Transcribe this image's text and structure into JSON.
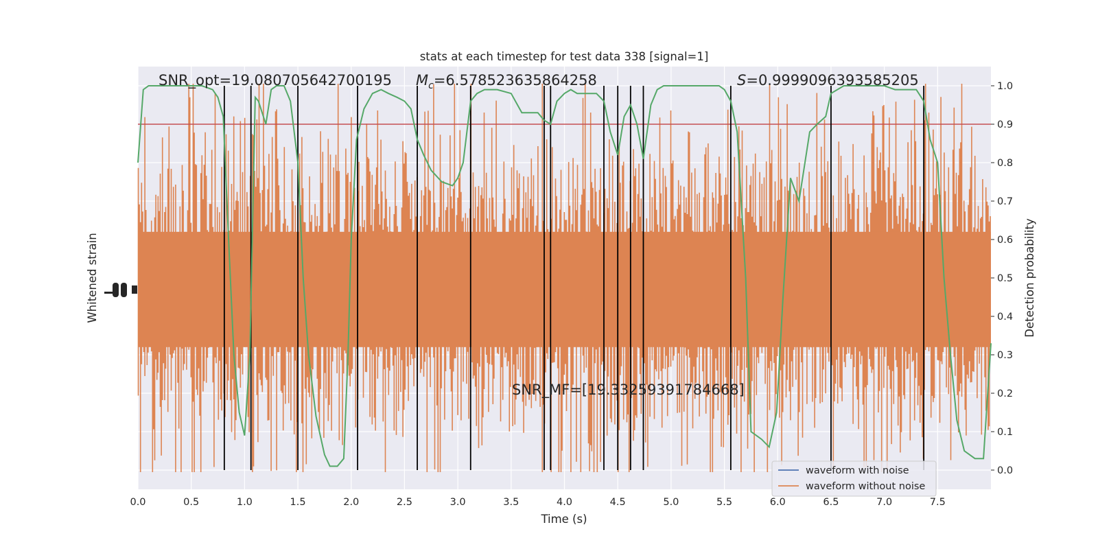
{
  "chart_data": {
    "type": "line",
    "title": "stats at each timestep for test data 338 [signal=1]",
    "xlabel": "Time (s)",
    "ylabel_left": "Whitened strain",
    "ylabel_right": "Detection probability",
    "xlim": [
      0,
      8
    ],
    "ylim_right": [
      -0.05,
      1.05
    ],
    "x_ticks": [
      "0.0",
      "0.5",
      "1.0",
      "1.5",
      "2.0",
      "2.5",
      "3.0",
      "3.5",
      "4.0",
      "4.5",
      "5.0",
      "5.5",
      "6.0",
      "6.5",
      "7.0",
      "7.5"
    ],
    "y_ticks_right": [
      "0.0",
      "0.1",
      "0.2",
      "0.3",
      "0.4",
      "0.5",
      "0.6",
      "0.7",
      "0.8",
      "0.9",
      "1.0"
    ],
    "grid": true,
    "threshold": 0.9,
    "annotations": {
      "snr_opt": "SNR_opt=19.080705642700195",
      "mc_symbol": "M",
      "mc_sub": "c",
      "mc_value": "=6.578523635864258",
      "s_symbol": "S",
      "s_value": "=0.9999096393585205",
      "snr_mf": "SNR_MF=[19.33259391784668]"
    },
    "vertical_lines": [
      0.81,
      1.06,
      1.5,
      2.06,
      2.62,
      3.12,
      3.81,
      3.87,
      4.37,
      4.5,
      4.62,
      4.74,
      5.56,
      6.5,
      7.37
    ],
    "series": [
      {
        "name": "waveform with noise",
        "color": "#4c72b0"
      },
      {
        "name": "waveform without noise",
        "color": "#dd8452"
      },
      {
        "color": "#55a868",
        "x": [
          0.0,
          0.05,
          0.1,
          0.2,
          0.3,
          0.4,
          0.5,
          0.6,
          0.7,
          0.75,
          0.8,
          0.85,
          0.9,
          0.95,
          1.0,
          1.05,
          1.1,
          1.13,
          1.2,
          1.25,
          1.3,
          1.37,
          1.43,
          1.5,
          1.55,
          1.6,
          1.67,
          1.75,
          1.8,
          1.87,
          1.93,
          1.97,
          2.0,
          2.05,
          2.12,
          2.2,
          2.28,
          2.35,
          2.43,
          2.5,
          2.56,
          2.62,
          2.68,
          2.75,
          2.85,
          2.95,
          3.0,
          3.05,
          3.12,
          3.18,
          3.25,
          3.37,
          3.5,
          3.6,
          3.75,
          3.81,
          3.87,
          3.93,
          4.0,
          4.06,
          4.12,
          4.18,
          4.3,
          4.37,
          4.43,
          4.5,
          4.56,
          4.62,
          4.68,
          4.74,
          4.81,
          4.87,
          4.93,
          5.0,
          5.25,
          5.37,
          5.45,
          5.5,
          5.56,
          5.62,
          5.7,
          5.75,
          5.85,
          5.92,
          5.99,
          6.05,
          6.12,
          6.2,
          6.3,
          6.37,
          6.45,
          6.5,
          6.62,
          6.68,
          6.75,
          6.87,
          7.0,
          7.1,
          7.2,
          7.3,
          7.37,
          7.43,
          7.5,
          7.56,
          7.62,
          7.68,
          7.75,
          7.85,
          7.93,
          8.0
        ],
        "y": [
          0.8,
          0.99,
          1.0,
          1.0,
          1.0,
          1.0,
          1.0,
          1.0,
          0.99,
          0.97,
          0.92,
          0.6,
          0.3,
          0.15,
          0.09,
          0.3,
          0.97,
          0.96,
          0.9,
          0.99,
          1.0,
          1.0,
          0.96,
          0.8,
          0.5,
          0.3,
          0.14,
          0.04,
          0.01,
          0.01,
          0.03,
          0.3,
          0.6,
          0.86,
          0.94,
          0.98,
          0.99,
          0.98,
          0.97,
          0.96,
          0.94,
          0.86,
          0.82,
          0.78,
          0.75,
          0.74,
          0.76,
          0.8,
          0.96,
          0.98,
          0.99,
          0.99,
          0.98,
          0.93,
          0.93,
          0.91,
          0.9,
          0.96,
          0.98,
          0.99,
          0.98,
          0.98,
          0.98,
          0.96,
          0.88,
          0.82,
          0.92,
          0.95,
          0.9,
          0.81,
          0.95,
          0.99,
          1.0,
          1.0,
          1.0,
          1.0,
          1.0,
          0.99,
          0.96,
          0.88,
          0.5,
          0.1,
          0.08,
          0.06,
          0.15,
          0.45,
          0.76,
          0.7,
          0.88,
          0.9,
          0.92,
          0.98,
          1.0,
          1.0,
          1.0,
          1.0,
          1.0,
          0.99,
          0.99,
          0.99,
          0.96,
          0.86,
          0.8,
          0.5,
          0.3,
          0.13,
          0.05,
          0.03,
          0.03,
          0.33
        ]
      }
    ],
    "legend_position": "lower right"
  }
}
